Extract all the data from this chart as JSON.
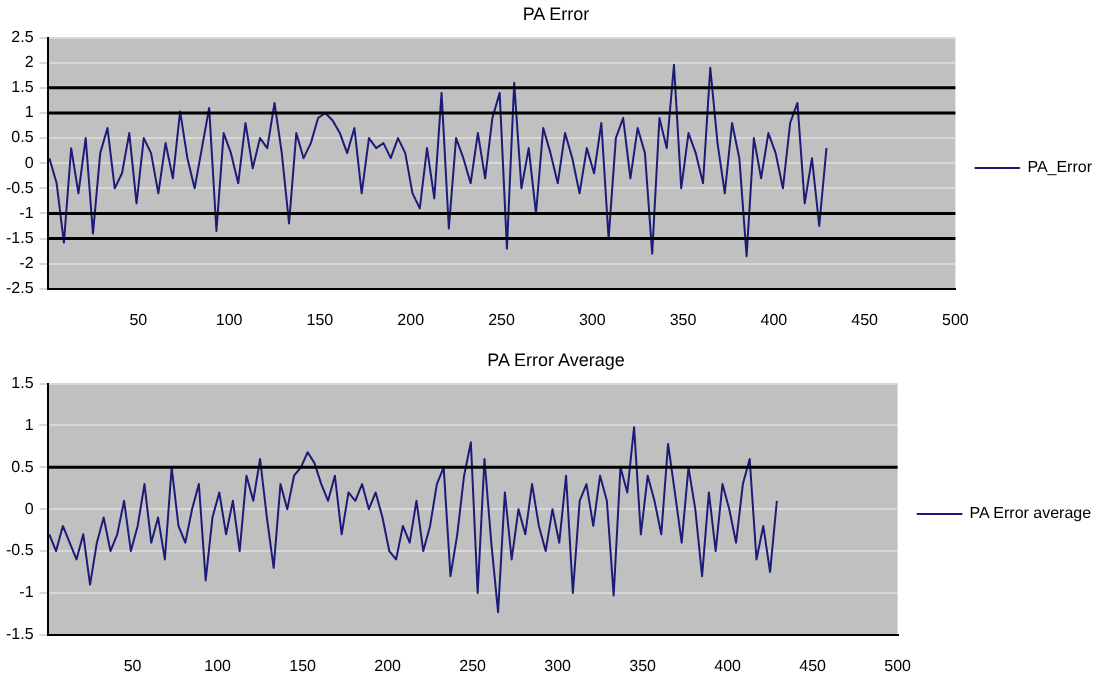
{
  "chart_data": [
    {
      "type": "line",
      "title": "PA Error",
      "legend": "right",
      "grid": "y",
      "marker": "none",
      "x": [
        1,
        5,
        9,
        13,
        17,
        21,
        25,
        29,
        33,
        37,
        41,
        45,
        49,
        53,
        57,
        61,
        65,
        69,
        73,
        77,
        81,
        85,
        89,
        93,
        97,
        101,
        105,
        109,
        113,
        117,
        121,
        125,
        129,
        133,
        137,
        141,
        145,
        149,
        153,
        157,
        161,
        165,
        169,
        173,
        177,
        181,
        185,
        189,
        193,
        197,
        201,
        205,
        209,
        213,
        217,
        221,
        225,
        229,
        233,
        237,
        241,
        245,
        249,
        253,
        257,
        261,
        265,
        269,
        273,
        277,
        281,
        285,
        289,
        293,
        297,
        301,
        305,
        309,
        313,
        317,
        321,
        325,
        329,
        333,
        337,
        341,
        345,
        349,
        353,
        357,
        361,
        365,
        369,
        373,
        377,
        381,
        385,
        389,
        393,
        397,
        401,
        405,
        409,
        413,
        417,
        421,
        425,
        429
      ],
      "series": [
        {
          "name": "PA_Error",
          "color": "#1c1c78",
          "values": [
            0.1,
            -0.4,
            -1.58,
            0.3,
            -0.6,
            0.5,
            -1.4,
            0.2,
            0.7,
            -0.5,
            -0.2,
            0.6,
            -0.8,
            0.5,
            0.2,
            -0.6,
            0.4,
            -0.3,
            1.03,
            0.1,
            -0.5,
            0.3,
            1.1,
            -1.35,
            0.6,
            0.2,
            -0.4,
            0.8,
            -0.1,
            0.5,
            0.3,
            1.2,
            0.2,
            -1.2,
            0.6,
            0.1,
            0.4,
            0.9,
            1.0,
            0.85,
            0.6,
            0.2,
            0.7,
            -0.6,
            0.5,
            0.3,
            0.4,
            0.1,
            0.5,
            0.2,
            -0.6,
            -0.9,
            0.3,
            -0.7,
            1.4,
            -1.3,
            0.5,
            0.1,
            -0.4,
            0.6,
            -0.3,
            0.9,
            1.4,
            -1.7,
            1.6,
            -0.5,
            0.3,
            -1.0,
            0.7,
            0.2,
            -0.4,
            0.6,
            0.1,
            -0.6,
            0.3,
            -0.2,
            0.8,
            -1.5,
            0.5,
            0.9,
            -0.3,
            0.7,
            0.2,
            -1.8,
            0.9,
            0.3,
            1.96,
            -0.5,
            0.6,
            0.2,
            -0.4,
            1.9,
            0.4,
            -0.6,
            0.8,
            0.1,
            -1.85,
            0.5,
            -0.3,
            0.6,
            0.2,
            -0.5,
            0.8,
            1.2,
            -0.8,
            0.1,
            -1.25,
            0.3
          ]
        }
      ],
      "xlim": [
        0,
        500
      ],
      "xticks": [
        50,
        100,
        150,
        200,
        250,
        300,
        350,
        400,
        450,
        500
      ],
      "ylim": [
        -2.5,
        2.5
      ],
      "yticks": [
        -2.5,
        -2,
        -1.5,
        -1,
        -0.5,
        0,
        0.5,
        1,
        1.5,
        2,
        2.5
      ],
      "ref_lines": [
        {
          "axis": "y",
          "value": 1.5,
          "color": "#000000"
        },
        {
          "axis": "y",
          "value": 1,
          "color": "#000000"
        },
        {
          "axis": "y",
          "value": -1,
          "color": "#000000"
        },
        {
          "axis": "y",
          "value": -1.5,
          "color": "#000000"
        }
      ]
    },
    {
      "type": "line",
      "title": "PA Error Average",
      "legend": "right",
      "grid": "y",
      "marker": "none",
      "x": [
        1,
        5,
        9,
        13,
        17,
        21,
        25,
        29,
        33,
        37,
        41,
        45,
        49,
        53,
        57,
        61,
        65,
        69,
        73,
        77,
        81,
        85,
        89,
        93,
        97,
        101,
        105,
        109,
        113,
        117,
        121,
        125,
        129,
        133,
        137,
        141,
        145,
        149,
        153,
        157,
        161,
        165,
        169,
        173,
        177,
        181,
        185,
        189,
        193,
        197,
        201,
        205,
        209,
        213,
        217,
        221,
        225,
        229,
        233,
        237,
        241,
        245,
        249,
        253,
        257,
        261,
        265,
        269,
        273,
        277,
        281,
        285,
        289,
        293,
        297,
        301,
        305,
        309,
        313,
        317,
        321,
        325,
        329,
        333,
        337,
        341,
        345,
        349,
        353,
        357,
        361,
        365,
        369,
        373,
        377,
        381,
        385,
        389,
        393,
        397,
        401,
        405,
        409,
        413,
        417,
        421,
        425,
        429
      ],
      "series": [
        {
          "name": "PA Error average",
          "color": "#1c1c78",
          "values": [
            -0.3,
            -0.5,
            -0.2,
            -0.4,
            -0.6,
            -0.3,
            -0.9,
            -0.4,
            -0.1,
            -0.5,
            -0.3,
            0.1,
            -0.5,
            -0.2,
            0.3,
            -0.4,
            -0.1,
            -0.6,
            0.5,
            -0.2,
            -0.4,
            0.0,
            0.3,
            -0.85,
            -0.1,
            0.2,
            -0.3,
            0.1,
            -0.5,
            0.4,
            0.1,
            0.6,
            -0.1,
            -0.7,
            0.3,
            0.0,
            0.4,
            0.5,
            0.68,
            0.55,
            0.3,
            0.1,
            0.4,
            -0.3,
            0.2,
            0.1,
            0.3,
            0.0,
            0.2,
            -0.1,
            -0.5,
            -0.6,
            -0.2,
            -0.4,
            0.1,
            -0.5,
            -0.2,
            0.3,
            0.5,
            -0.8,
            -0.3,
            0.4,
            0.8,
            -1.0,
            0.6,
            -0.4,
            -1.23,
            0.2,
            -0.6,
            0.0,
            -0.3,
            0.3,
            -0.2,
            -0.5,
            0.0,
            -0.4,
            0.4,
            -1.0,
            0.1,
            0.3,
            -0.2,
            0.4,
            0.1,
            -1.03,
            0.5,
            0.2,
            0.98,
            -0.3,
            0.4,
            0.1,
            -0.3,
            0.78,
            0.2,
            -0.4,
            0.5,
            0.0,
            -0.8,
            0.2,
            -0.5,
            0.3,
            0.0,
            -0.4,
            0.3,
            0.6,
            -0.6,
            -0.2,
            -0.75,
            0.1
          ]
        }
      ],
      "xlim": [
        0,
        500
      ],
      "xticks": [
        50,
        100,
        150,
        200,
        250,
        300,
        350,
        400,
        450,
        500
      ],
      "ylim": [
        -1.5,
        1.5
      ],
      "yticks": [
        -1.5,
        -1,
        -0.5,
        0,
        0.5,
        1,
        1.5
      ],
      "ref_lines": [
        {
          "axis": "y",
          "value": 0.5,
          "color": "#000000"
        }
      ]
    }
  ]
}
